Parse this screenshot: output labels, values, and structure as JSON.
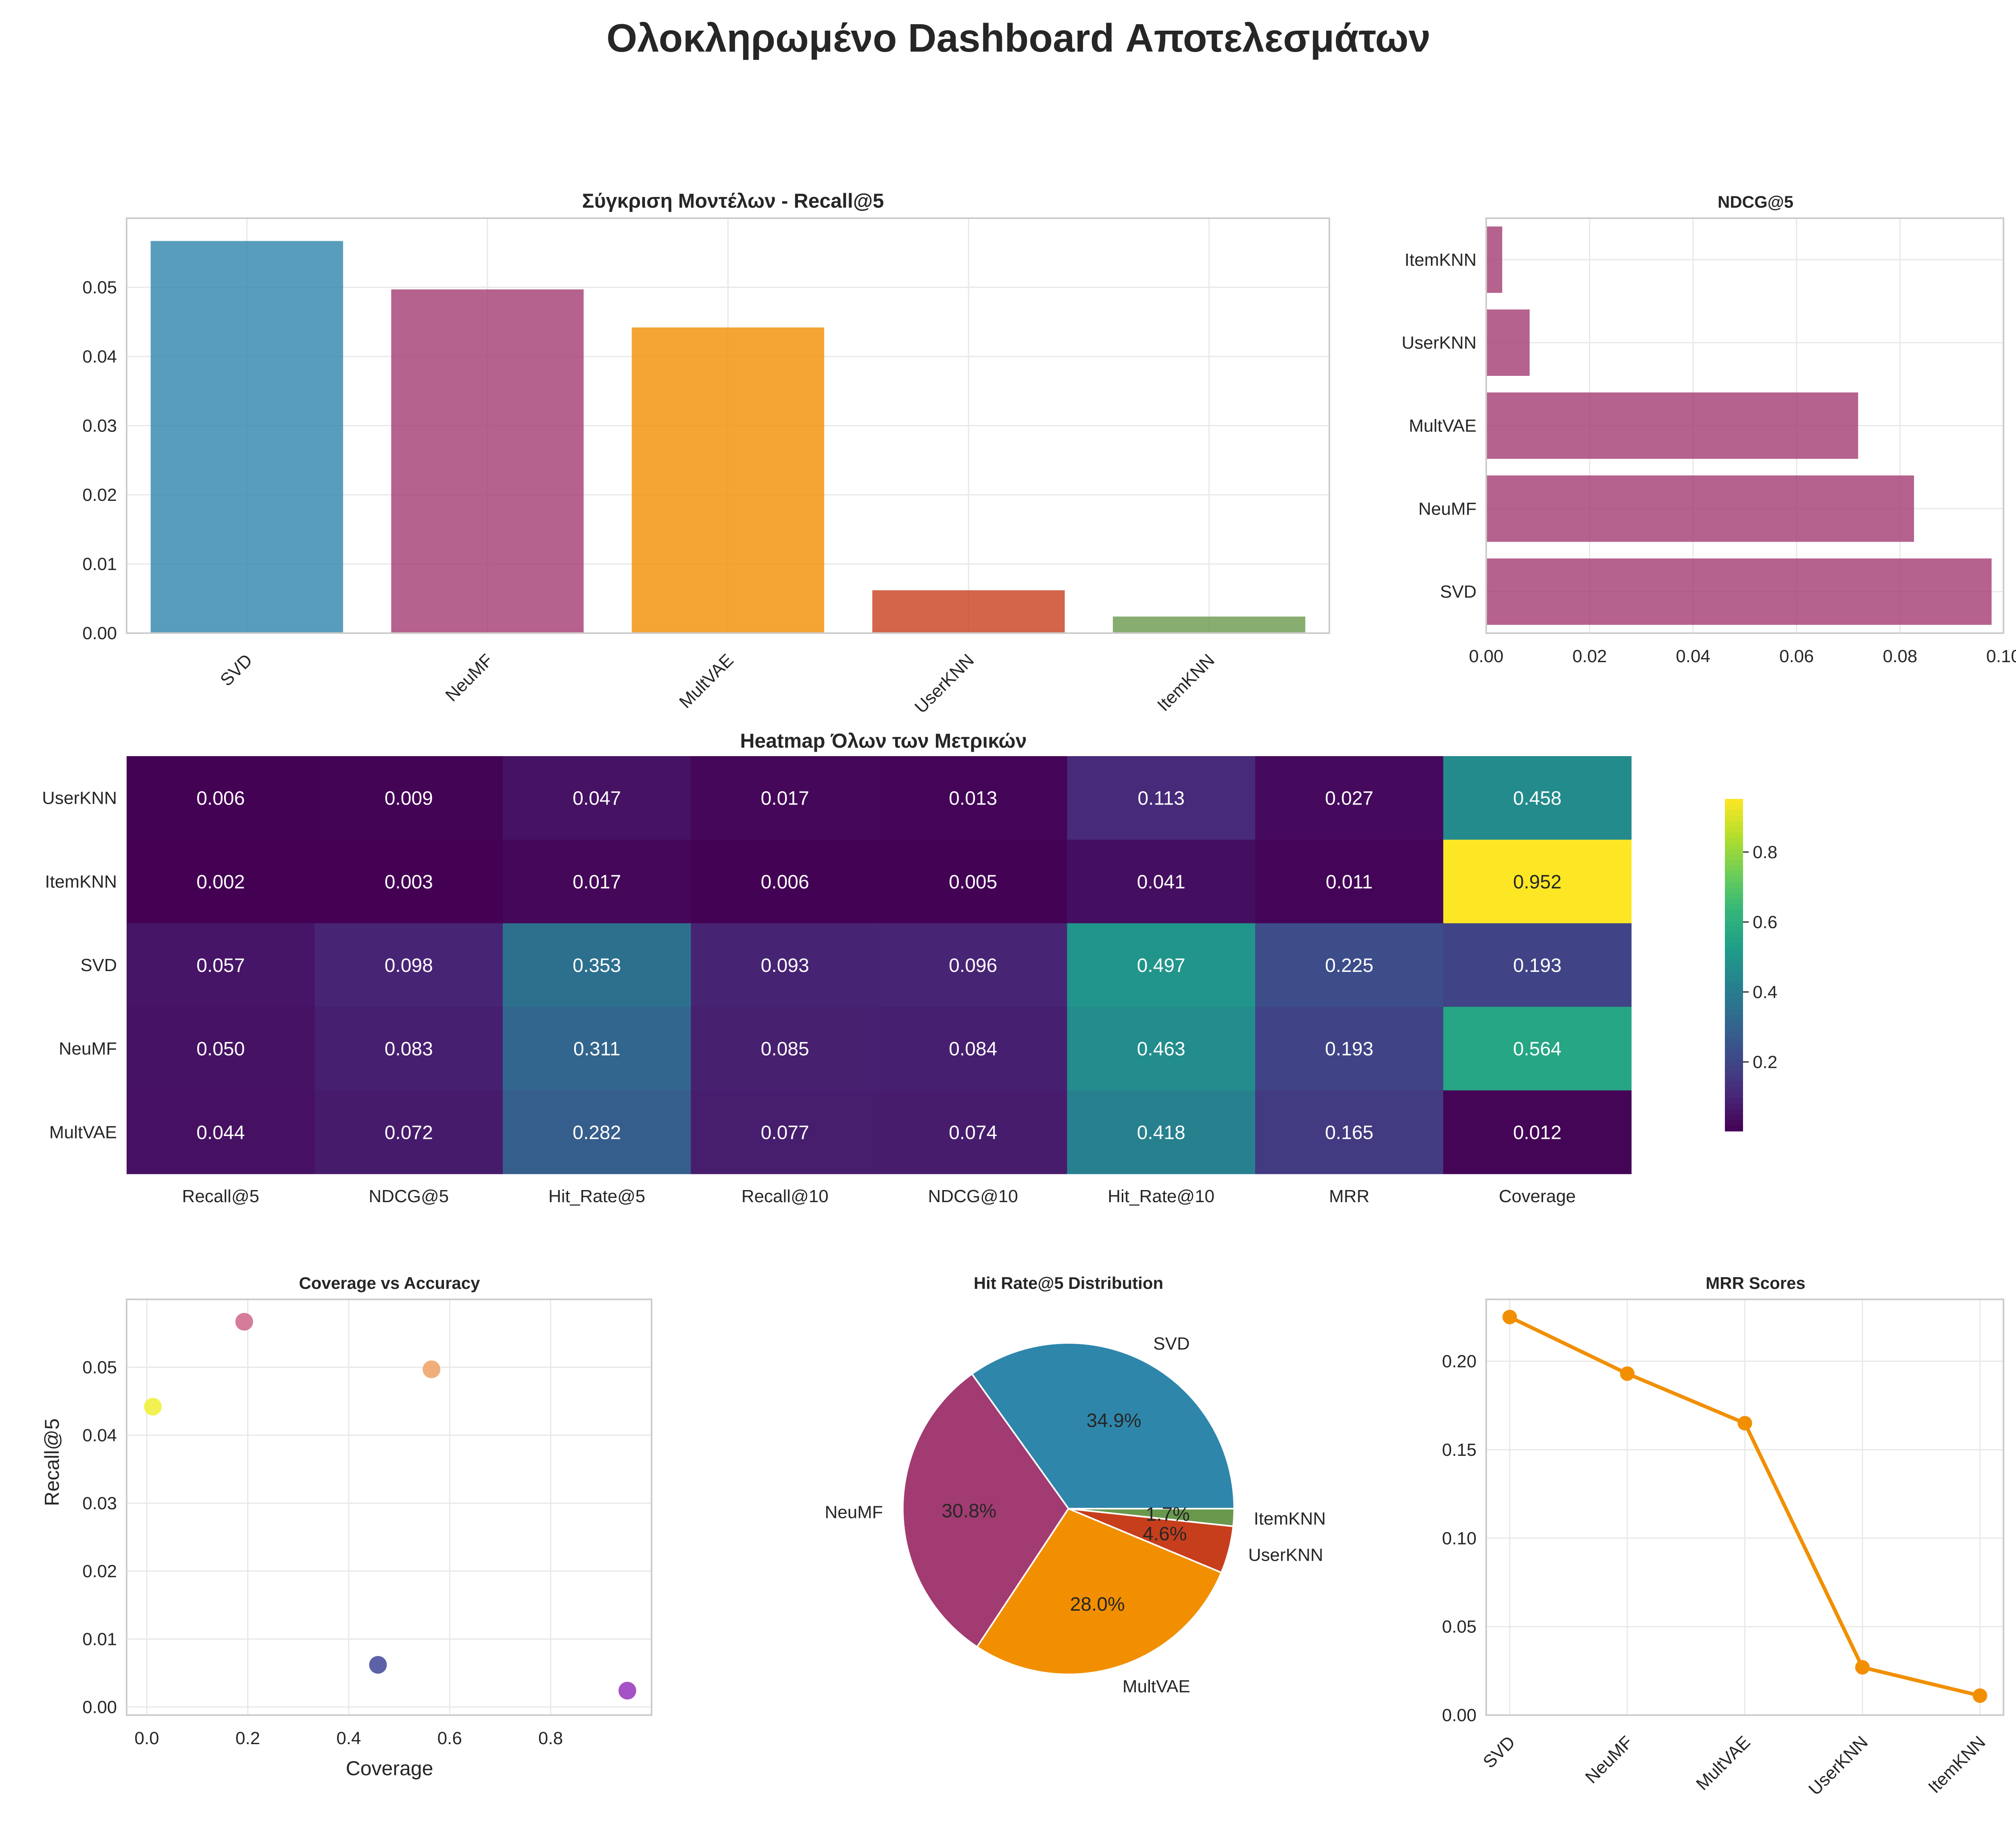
{
  "title": "Ολοκληρωμένο Dashboard Αποτελεσμάτων",
  "colors": {
    "SVD": "#2e86ab",
    "NeuMF": "#a23b72",
    "MultVAE": "#f18f01",
    "UserKNN": "#c73e1d",
    "ItemKNN": "#6a994e"
  },
  "recall_bar": {
    "title": "Σύγκριση Μοντέλων - Recall@5",
    "yticks": [
      "0.00",
      "0.01",
      "0.02",
      "0.03",
      "0.04",
      "0.05"
    ]
  },
  "ndcg_bar": {
    "title": "NDCG@5",
    "xticks": [
      "0.00",
      "0.02",
      "0.04",
      "0.06",
      "0.08",
      "0.10"
    ]
  },
  "heatmap": {
    "title": "Heatmap Όλων των Μετρικών",
    "colorbar_ticks": [
      "0.2",
      "0.4",
      "0.6",
      "0.8"
    ]
  },
  "scatter": {
    "title": "Coverage vs Accuracy",
    "xlabel": "Coverage",
    "ylabel": "Recall@5",
    "xticks": [
      "0.0",
      "0.2",
      "0.4",
      "0.6",
      "0.8"
    ],
    "yticks": [
      "0.00",
      "0.01",
      "0.02",
      "0.03",
      "0.04",
      "0.05"
    ]
  },
  "pie": {
    "title": "Hit Rate@5 Distribution"
  },
  "mrr_line": {
    "title": "MRR Scores",
    "yticks": [
      "0.00",
      "0.05",
      "0.10",
      "0.15",
      "0.20"
    ]
  },
  "chart_data": [
    {
      "type": "bar",
      "title": "Σύγκριση Μοντέλων - Recall@5",
      "categories": [
        "SVD",
        "NeuMF",
        "MultVAE",
        "UserKNN",
        "ItemKNN"
      ],
      "values": [
        0.0567,
        0.0497,
        0.0442,
        0.0062,
        0.0024
      ],
      "ylim": [
        0,
        0.06
      ],
      "grid": true
    },
    {
      "type": "bar",
      "orientation": "horizontal",
      "title": "NDCG@5",
      "categories": [
        "SVD",
        "NeuMF",
        "MultVAE",
        "UserKNN",
        "ItemKNN"
      ],
      "values": [
        0.0977,
        0.0827,
        0.0719,
        0.0084,
        0.0031
      ],
      "xlim": [
        0,
        0.1
      ],
      "grid": true
    },
    {
      "type": "heatmap",
      "title": "Heatmap Όλων των Μετρικών",
      "rows": [
        "UserKNN",
        "ItemKNN",
        "SVD",
        "NeuMF",
        "MultVAE"
      ],
      "columns": [
        "Recall@5",
        "NDCG@5",
        "Hit_Rate@5",
        "Recall@10",
        "NDCG@10",
        "Hit_Rate@10",
        "MRR",
        "Coverage"
      ],
      "values": [
        [
          0.006,
          0.009,
          0.047,
          0.017,
          0.013,
          0.113,
          0.027,
          0.458
        ],
        [
          0.002,
          0.003,
          0.017,
          0.006,
          0.005,
          0.041,
          0.011,
          0.952
        ],
        [
          0.057,
          0.098,
          0.353,
          0.093,
          0.096,
          0.497,
          0.225,
          0.193
        ],
        [
          0.05,
          0.083,
          0.311,
          0.085,
          0.084,
          0.463,
          0.193,
          0.564
        ],
        [
          0.044,
          0.072,
          0.282,
          0.077,
          0.074,
          0.418,
          0.165,
          0.012
        ]
      ],
      "labels": [
        [
          "0.006",
          "0.009",
          "0.047",
          "0.017",
          "0.013",
          "0.113",
          "0.027",
          "0.458"
        ],
        [
          "0.002",
          "0.003",
          "0.017",
          "0.006",
          "0.005",
          "0.041",
          "0.011",
          "0.952"
        ],
        [
          "0.057",
          "0.098",
          "0.353",
          "0.093",
          "0.096",
          "0.497",
          "0.225",
          "0.193"
        ],
        [
          "0.050",
          "0.083",
          "0.311",
          "0.085",
          "0.084",
          "0.463",
          "0.193",
          "0.564"
        ],
        [
          "0.044",
          "0.072",
          "0.282",
          "0.077",
          "0.074",
          "0.418",
          "0.165",
          "0.012"
        ]
      ],
      "colormap": "viridis",
      "colorbar_range": [
        0.002,
        0.952
      ]
    },
    {
      "type": "scatter",
      "title": "Coverage vs Accuracy",
      "xlabel": "Coverage",
      "ylabel": "Recall@5",
      "points": [
        {
          "x": 0.193,
          "y": 0.0567,
          "color": "#d06e8f"
        },
        {
          "x": 0.564,
          "y": 0.0497,
          "color": "#f0a569"
        },
        {
          "x": 0.012,
          "y": 0.0442,
          "color": "#eff13f"
        },
        {
          "x": 0.458,
          "y": 0.0062,
          "color": "#4a519e"
        },
        {
          "x": 0.952,
          "y": 0.0024,
          "color": "#9b3fc1"
        }
      ],
      "xlim": [
        -0.04,
        1.0
      ],
      "ylim": [
        -0.0012,
        0.06
      ],
      "grid": true
    },
    {
      "type": "pie",
      "title": "Hit Rate@5 Distribution",
      "labels": [
        "SVD",
        "NeuMF",
        "MultVAE",
        "UserKNN",
        "ItemKNN"
      ],
      "values": [
        34.9,
        30.8,
        28.0,
        4.6,
        1.7
      ],
      "pct_labels": [
        "34.9%",
        "30.8%",
        "28.0%",
        "4.6%",
        "1.7%"
      ]
    },
    {
      "type": "line",
      "title": "MRR Scores",
      "categories": [
        "SVD",
        "NeuMF",
        "MultVAE",
        "UserKNN",
        "ItemKNN"
      ],
      "values": [
        0.225,
        0.193,
        0.165,
        0.027,
        0.011
      ],
      "ylim": [
        0,
        0.235
      ],
      "color": "#f18f01",
      "grid": true
    }
  ]
}
